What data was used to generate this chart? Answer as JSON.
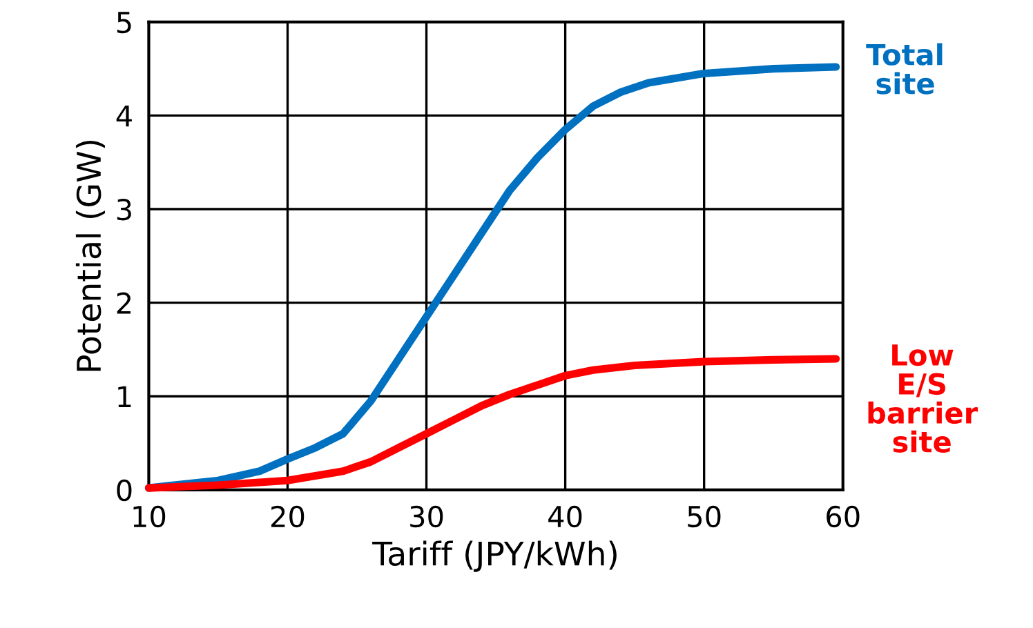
{
  "chart_data": {
    "type": "line",
    "xlabel": "Tariff (JPY/kWh)",
    "ylabel": "Potential (GW)",
    "xlim": [
      10,
      60
    ],
    "xticks": [
      10,
      20,
      30,
      40,
      50,
      60
    ],
    "ylim": [
      0,
      5
    ],
    "yticks": [
      0,
      1,
      2,
      3,
      4,
      5
    ],
    "grid": true,
    "legend": false,
    "marker": "none",
    "line_style": "solid",
    "series": [
      {
        "name": "Total\nsite",
        "color": "#0070c0",
        "x": [
          10,
          15,
          18,
          20,
          22,
          24,
          26,
          28,
          30,
          32,
          34,
          36,
          38,
          40,
          42,
          44,
          46,
          50,
          55,
          59.5
        ],
        "values": [
          0.02,
          0.1,
          0.2,
          0.33,
          0.45,
          0.6,
          0.95,
          1.4,
          1.85,
          2.3,
          2.75,
          3.2,
          3.55,
          3.85,
          4.1,
          4.25,
          4.35,
          4.45,
          4.5,
          4.52
        ]
      },
      {
        "name": "Low\nE/S\nbarrier\nsite",
        "color": "#ff0000",
        "x": [
          10,
          15,
          20,
          24,
          26,
          28,
          30,
          32,
          34,
          36,
          38,
          40,
          42,
          45,
          50,
          55,
          59.5
        ],
        "values": [
          0.02,
          0.05,
          0.1,
          0.2,
          0.3,
          0.45,
          0.6,
          0.75,
          0.9,
          1.02,
          1.12,
          1.22,
          1.28,
          1.33,
          1.37,
          1.39,
          1.4
        ]
      }
    ]
  }
}
